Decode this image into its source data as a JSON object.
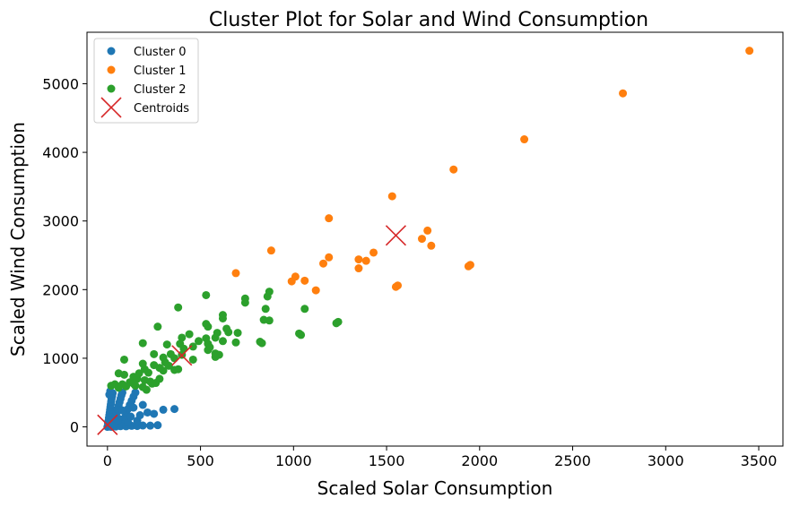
{
  "chart_data": {
    "type": "scatter",
    "title": "Cluster Plot for Solar and Wind Consumption",
    "xlabel": "Scaled Solar Consumption",
    "ylabel": "Scaled Wind Consumption",
    "xlim": [
      -110,
      3630
    ],
    "ylim": [
      -280,
      5750
    ],
    "xticks": [
      0,
      500,
      1000,
      1500,
      2000,
      2500,
      3000,
      3500
    ],
    "yticks": [
      0,
      1000,
      2000,
      3000,
      4000,
      5000
    ],
    "grid": false,
    "legend_position": "top-left",
    "series": [
      {
        "name": "Cluster 0",
        "color": "#1f77b4",
        "marker": "circle",
        "points": [
          [
            0,
            0
          ],
          [
            2,
            10
          ],
          [
            4,
            25
          ],
          [
            3,
            60
          ],
          [
            6,
            90
          ],
          [
            8,
            130
          ],
          [
            10,
            170
          ],
          [
            12,
            210
          ],
          [
            14,
            250
          ],
          [
            16,
            290
          ],
          [
            18,
            330
          ],
          [
            20,
            370
          ],
          [
            22,
            410
          ],
          [
            25,
            450
          ],
          [
            28,
            490
          ],
          [
            30,
            20
          ],
          [
            35,
            60
          ],
          [
            40,
            110
          ],
          [
            45,
            160
          ],
          [
            50,
            210
          ],
          [
            55,
            260
          ],
          [
            60,
            310
          ],
          [
            65,
            360
          ],
          [
            70,
            410
          ],
          [
            75,
            460
          ],
          [
            80,
            500
          ],
          [
            85,
            30
          ],
          [
            90,
            80
          ],
          [
            95,
            140
          ],
          [
            100,
            200
          ],
          [
            110,
            260
          ],
          [
            120,
            320
          ],
          [
            130,
            380
          ],
          [
            140,
            440
          ],
          [
            150,
            500
          ],
          [
            20,
            0
          ],
          [
            45,
            5
          ],
          [
            70,
            10
          ],
          [
            100,
            8
          ],
          [
            130,
            15
          ],
          [
            160,
            12
          ],
          [
            190,
            20
          ],
          [
            215,
            210
          ],
          [
            230,
            18
          ],
          [
            250,
            190
          ],
          [
            270,
            25
          ],
          [
            300,
            250
          ],
          [
            360,
            260
          ],
          [
            60,
            120
          ],
          [
            80,
            240
          ],
          [
            110,
            70
          ],
          [
            125,
            150
          ],
          [
            140,
            280
          ],
          [
            160,
            90
          ],
          [
            175,
            170
          ],
          [
            190,
            320
          ],
          [
            10,
            470
          ],
          [
            15,
            520
          ],
          [
            40,
            40
          ],
          [
            55,
            95
          ]
        ]
      },
      {
        "name": "Cluster 1",
        "color": "#ff7f0e",
        "marker": "circle",
        "points": [
          [
            3450,
            5480
          ],
          [
            2770,
            4860
          ],
          [
            2240,
            4190
          ],
          [
            1860,
            3750
          ],
          [
            1530,
            3360
          ],
          [
            1190,
            3040
          ],
          [
            1720,
            2860
          ],
          [
            1690,
            2740
          ],
          [
            1740,
            2640
          ],
          [
            1190,
            2470
          ],
          [
            880,
            2570
          ],
          [
            1430,
            2540
          ],
          [
            1390,
            2420
          ],
          [
            1350,
            2440
          ],
          [
            1160,
            2380
          ],
          [
            1350,
            2310
          ],
          [
            1950,
            2360
          ],
          [
            1940,
            2340
          ],
          [
            690,
            2240
          ],
          [
            1010,
            2190
          ],
          [
            990,
            2120
          ],
          [
            1060,
            2130
          ],
          [
            1120,
            1990
          ],
          [
            1560,
            2060
          ],
          [
            1550,
            2040
          ]
        ]
      },
      {
        "name": "Cluster 2",
        "color": "#2ca02c",
        "marker": "circle",
        "points": [
          [
            380,
            1740
          ],
          [
            530,
            1920
          ],
          [
            740,
            1870
          ],
          [
            870,
            1970
          ],
          [
            860,
            1900
          ],
          [
            740,
            1810
          ],
          [
            850,
            1720
          ],
          [
            1060,
            1720
          ],
          [
            620,
            1630
          ],
          [
            620,
            1580
          ],
          [
            840,
            1560
          ],
          [
            870,
            1550
          ],
          [
            1240,
            1530
          ],
          [
            1230,
            1510
          ],
          [
            270,
            1460
          ],
          [
            530,
            1500
          ],
          [
            540,
            1460
          ],
          [
            640,
            1430
          ],
          [
            590,
            1370
          ],
          [
            650,
            1380
          ],
          [
            700,
            1370
          ],
          [
            1030,
            1360
          ],
          [
            1040,
            1340
          ],
          [
            440,
            1350
          ],
          [
            400,
            1300
          ],
          [
            490,
            1250
          ],
          [
            530,
            1290
          ],
          [
            580,
            1300
          ],
          [
            190,
            1220
          ],
          [
            320,
            1200
          ],
          [
            390,
            1210
          ],
          [
            410,
            1140
          ],
          [
            460,
            1170
          ],
          [
            540,
            1210
          ],
          [
            620,
            1250
          ],
          [
            690,
            1230
          ],
          [
            820,
            1240
          ],
          [
            830,
            1220
          ],
          [
            550,
            1160
          ],
          [
            540,
            1120
          ],
          [
            340,
            1060
          ],
          [
            360,
            1000
          ],
          [
            400,
            1050
          ],
          [
            460,
            980
          ],
          [
            580,
            1070
          ],
          [
            600,
            1050
          ],
          [
            580,
            1020
          ],
          [
            250,
            1060
          ],
          [
            300,
            1010
          ],
          [
            310,
            940
          ],
          [
            330,
            890
          ],
          [
            380,
            840
          ],
          [
            90,
            980
          ],
          [
            190,
            920
          ],
          [
            250,
            900
          ],
          [
            280,
            860
          ],
          [
            300,
            820
          ],
          [
            360,
            830
          ],
          [
            200,
            840
          ],
          [
            220,
            790
          ],
          [
            170,
            780
          ],
          [
            60,
            780
          ],
          [
            90,
            760
          ],
          [
            140,
            730
          ],
          [
            160,
            700
          ],
          [
            200,
            680
          ],
          [
            230,
            660
          ],
          [
            260,
            640
          ],
          [
            120,
            650
          ],
          [
            80,
            620
          ],
          [
            40,
            620
          ],
          [
            20,
            600
          ],
          [
            100,
            590
          ],
          [
            150,
            600
          ],
          [
            190,
            580
          ],
          [
            210,
            540
          ],
          [
            240,
            630
          ],
          [
            280,
            700
          ],
          [
            140,
            630
          ],
          [
            60,
            570
          ]
        ]
      },
      {
        "name": "Centroids",
        "color": "#d62728",
        "marker": "x",
        "points": [
          [
            0,
            30
          ],
          [
            1550,
            2790
          ],
          [
            400,
            1040
          ]
        ]
      }
    ]
  }
}
